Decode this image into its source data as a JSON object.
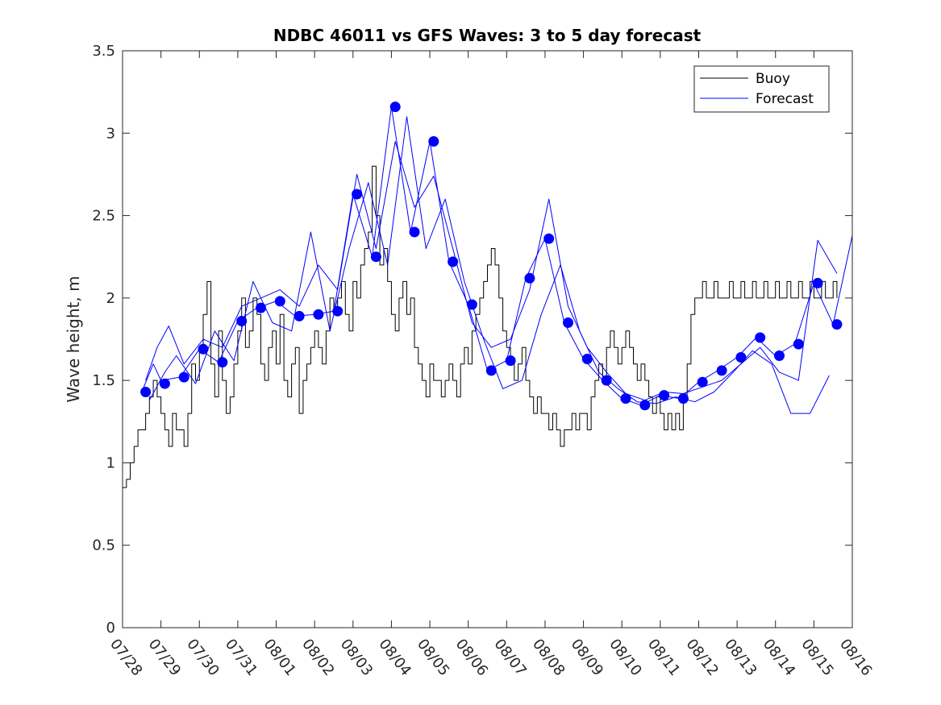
{
  "chart_data": {
    "type": "line",
    "title": "NDBC 46011 vs GFS Waves: 3 to 5 day forecast",
    "xlabel": "",
    "ylabel": "Wave height, m",
    "ylim": [
      0,
      3.5
    ],
    "yticks": [
      0,
      0.5,
      1,
      1.5,
      2,
      2.5,
      3,
      3.5
    ],
    "ytick_labels": [
      "0",
      "0.5",
      "1",
      "1.5",
      "2",
      "2.5",
      "3",
      "3.5"
    ],
    "xlim_days": [
      0,
      19
    ],
    "xtick_labels": [
      "07/28",
      "07/29",
      "07/30",
      "07/31",
      "08/01",
      "08/02",
      "08/03",
      "08/04",
      "08/05",
      "08/06",
      "08/07",
      "08/08",
      "08/09",
      "08/10",
      "08/11",
      "08/12",
      "08/13",
      "08/14",
      "08/15",
      "08/16"
    ],
    "legend": {
      "position": "top-right",
      "entries": [
        {
          "label": "Buoy",
          "color": "#000000"
        },
        {
          "label": "Forecast",
          "color": "#0000ff"
        }
      ]
    },
    "colors": {
      "buoy": "#000000",
      "forecast": "#0000ff",
      "axes": "#262626"
    },
    "series": [
      {
        "name": "Buoy",
        "style": "line",
        "x": [
          0.0,
          0.1,
          0.2,
          0.3,
          0.4,
          0.5,
          0.6,
          0.7,
          0.8,
          0.9,
          1.0,
          1.1,
          1.2,
          1.3,
          1.4,
          1.5,
          1.6,
          1.7,
          1.8,
          1.9,
          2.0,
          2.1,
          2.2,
          2.3,
          2.4,
          2.5,
          2.6,
          2.7,
          2.8,
          2.9,
          3.0,
          3.1,
          3.2,
          3.3,
          3.4,
          3.5,
          3.6,
          3.7,
          3.8,
          3.9,
          4.0,
          4.1,
          4.2,
          4.3,
          4.4,
          4.5,
          4.6,
          4.7,
          4.8,
          4.9,
          5.0,
          5.1,
          5.2,
          5.3,
          5.4,
          5.5,
          5.6,
          5.7,
          5.8,
          5.9,
          6.0,
          6.1,
          6.2,
          6.3,
          6.4,
          6.5,
          6.6,
          6.7,
          6.8,
          6.9,
          7.0,
          7.1,
          7.2,
          7.3,
          7.4,
          7.5,
          7.6,
          7.7,
          7.8,
          7.9,
          8.0,
          8.1,
          8.2,
          8.3,
          8.4,
          8.5,
          8.6,
          8.7,
          8.8,
          8.9,
          9.0,
          9.1,
          9.2,
          9.3,
          9.4,
          9.5,
          9.6,
          9.7,
          9.8,
          9.9,
          10.0,
          10.1,
          10.2,
          10.3,
          10.4,
          10.5,
          10.6,
          10.7,
          10.8,
          10.9,
          11.0,
          11.1,
          11.2,
          11.3,
          11.4,
          11.5,
          11.6,
          11.7,
          11.8,
          11.9,
          12.0,
          12.1,
          12.2,
          12.3,
          12.4,
          12.5,
          12.6,
          12.7,
          12.8,
          12.9,
          13.0,
          13.1,
          13.2,
          13.3,
          13.4,
          13.5,
          13.6,
          13.7,
          13.8,
          13.9,
          14.0,
          14.1,
          14.2,
          14.3,
          14.4,
          14.5,
          14.6,
          14.7,
          14.8,
          14.9,
          15.0,
          15.1,
          15.2,
          15.3,
          15.4,
          15.5,
          15.6,
          15.7,
          15.8,
          15.9,
          16.0,
          16.1,
          16.2,
          16.3,
          16.4,
          16.5,
          16.6,
          16.7,
          16.8,
          16.9,
          17.0,
          17.1,
          17.2,
          17.3,
          17.4,
          17.5,
          17.6,
          17.7,
          17.8,
          17.9,
          18.0,
          18.1,
          18.2,
          18.3,
          18.4,
          18.5,
          18.6
        ],
        "y": [
          0.85,
          0.9,
          1.0,
          1.1,
          1.2,
          1.2,
          1.3,
          1.4,
          1.5,
          1.4,
          1.3,
          1.2,
          1.1,
          1.3,
          1.2,
          1.2,
          1.1,
          1.3,
          1.6,
          1.5,
          1.7,
          1.9,
          2.1,
          1.6,
          1.4,
          1.8,
          1.5,
          1.3,
          1.4,
          1.6,
          1.8,
          2.0,
          1.7,
          1.8,
          2.0,
          1.9,
          1.6,
          1.5,
          1.7,
          1.8,
          1.6,
          1.9,
          1.5,
          1.4,
          1.6,
          1.7,
          1.3,
          1.5,
          1.6,
          1.7,
          1.8,
          1.7,
          1.6,
          1.8,
          2.0,
          1.9,
          2.0,
          2.1,
          1.9,
          1.8,
          2.1,
          2.0,
          2.2,
          2.3,
          2.4,
          2.8,
          2.5,
          2.2,
          2.3,
          2.1,
          1.9,
          1.8,
          2.0,
          2.1,
          1.9,
          2.0,
          1.7,
          1.6,
          1.5,
          1.4,
          1.6,
          1.5,
          1.5,
          1.4,
          1.5,
          1.6,
          1.5,
          1.4,
          1.6,
          1.7,
          1.6,
          1.8,
          1.9,
          2.0,
          2.1,
          2.2,
          2.3,
          2.2,
          2.0,
          1.8,
          1.7,
          1.6,
          1.5,
          1.6,
          1.7,
          1.5,
          1.4,
          1.3,
          1.4,
          1.3,
          1.3,
          1.2,
          1.3,
          1.2,
          1.1,
          1.2,
          1.2,
          1.3,
          1.2,
          1.3,
          1.3,
          1.2,
          1.4,
          1.5,
          1.6,
          1.5,
          1.7,
          1.8,
          1.7,
          1.6,
          1.7,
          1.8,
          1.7,
          1.6,
          1.5,
          1.6,
          1.5,
          1.4,
          1.3,
          1.4,
          1.3,
          1.2,
          1.3,
          1.2,
          1.3,
          1.2,
          1.4,
          1.6,
          1.9,
          2.0,
          2.0,
          2.1,
          2.0,
          2.0,
          2.1,
          2.0,
          2.0,
          2.0,
          2.1,
          2.0,
          2.0,
          2.1,
          2.0,
          2.0,
          2.1,
          2.0,
          2.0,
          2.1,
          2.0,
          2.0,
          2.1,
          2.0,
          2.0,
          2.1,
          2.0,
          2.0,
          2.1,
          2.0,
          2.0,
          2.1,
          2.0,
          2.0,
          2.1,
          2.0,
          2.0,
          2.1,
          2.0
        ]
      },
      {
        "name": "Forecast",
        "style": "line",
        "x": [
          0.5,
          0.8,
          1.0,
          1.5,
          2.0,
          2.5,
          3.0,
          3.5,
          4.0,
          4.5,
          5.0,
          5.5,
          6.0,
          6.5,
          7.0,
          7.5,
          8.0,
          8.5,
          9.0,
          9.5,
          10.0,
          10.5,
          11.0,
          11.5,
          12.0,
          12.5,
          13.0,
          13.5,
          14.0,
          14.5,
          15.0,
          15.5,
          16.0,
          16.5,
          17.0,
          17.5,
          18.0,
          18.5,
          19.0
        ],
        "y": [
          1.43,
          1.6,
          1.5,
          1.52,
          1.69,
          1.61,
          1.86,
          1.94,
          1.98,
          1.89,
          1.9,
          1.92,
          2.63,
          2.25,
          3.16,
          2.4,
          2.95,
          2.22,
          1.96,
          1.56,
          1.62,
          2.12,
          2.36,
          1.85,
          1.63,
          1.5,
          1.39,
          1.35,
          1.41,
          1.39,
          1.49,
          1.56,
          1.64,
          1.76,
          1.65,
          1.72,
          2.09,
          1.84,
          2.38
        ]
      },
      {
        "name": "Forecast",
        "style": "line",
        "x": [
          0.6,
          0.9,
          1.2,
          1.6,
          2.1,
          2.6,
          3.1,
          3.6,
          4.1,
          4.6,
          5.1,
          5.6,
          6.1,
          6.6,
          7.1,
          7.6,
          8.1,
          8.6,
          9.1,
          9.6,
          10.1,
          10.6,
          11.1,
          11.6,
          12.1,
          12.6,
          13.1,
          13.6,
          14.1,
          14.6,
          15.1,
          15.6,
          16.1,
          16.6,
          17.1,
          17.6,
          18.1,
          18.6
        ],
        "y": [
          1.5,
          1.7,
          1.83,
          1.6,
          1.75,
          1.7,
          1.95,
          2.0,
          2.05,
          1.95,
          2.2,
          2.05,
          2.75,
          2.3,
          2.95,
          2.55,
          2.74,
          2.3,
          1.85,
          1.7,
          1.75,
          2.05,
          2.6,
          1.95,
          1.7,
          1.55,
          1.42,
          1.38,
          1.43,
          1.42,
          1.46,
          1.5,
          1.6,
          1.7,
          1.55,
          1.5,
          2.35,
          2.15
        ]
      },
      {
        "name": "Forecast",
        "style": "line",
        "x": [
          0.7,
          1.1,
          1.4,
          1.9,
          2.4,
          2.9,
          3.4,
          3.9,
          4.4,
          4.9,
          5.4,
          5.9,
          6.4,
          6.9,
          7.4,
          7.9,
          8.4,
          8.9,
          9.4,
          9.9,
          10.4,
          10.9,
          11.4,
          11.9,
          12.4,
          12.9,
          13.4,
          13.9,
          14.4,
          14.9,
          15.4,
          15.9,
          16.4,
          16.9,
          17.4,
          17.9,
          18.4
        ],
        "y": [
          1.38,
          1.55,
          1.65,
          1.48,
          1.8,
          1.62,
          2.1,
          1.85,
          1.8,
          2.4,
          1.8,
          2.3,
          2.7,
          2.2,
          3.1,
          2.3,
          2.6,
          2.1,
          1.75,
          1.45,
          1.5,
          1.9,
          2.2,
          1.8,
          1.55,
          1.45,
          1.37,
          1.36,
          1.4,
          1.37,
          1.43,
          1.55,
          1.68,
          1.6,
          1.3,
          1.3,
          1.53
        ]
      }
    ],
    "markers": {
      "name": "Forecast",
      "x": [
        0.6,
        1.1,
        1.6,
        2.1,
        2.6,
        3.1,
        3.6,
        4.1,
        4.6,
        5.1,
        5.6,
        6.1,
        6.6,
        7.1,
        7.6,
        8.1,
        8.6,
        9.1,
        9.6,
        10.1,
        10.6,
        11.1,
        11.6,
        12.1,
        12.6,
        13.1,
        13.6,
        14.1,
        14.6,
        15.1,
        15.6,
        16.1,
        16.6,
        17.1,
        17.6,
        18.1,
        18.6
      ],
      "y": [
        1.43,
        1.48,
        1.52,
        1.69,
        1.61,
        1.86,
        1.94,
        1.98,
        1.89,
        1.9,
        1.92,
        2.63,
        2.25,
        3.16,
        2.4,
        2.95,
        2.22,
        1.96,
        1.56,
        1.62,
        2.12,
        2.36,
        1.85,
        1.63,
        1.5,
        1.39,
        1.35,
        1.41,
        1.39,
        1.49,
        1.56,
        1.64,
        1.76,
        1.65,
        1.72,
        2.09,
        1.84
      ]
    }
  }
}
